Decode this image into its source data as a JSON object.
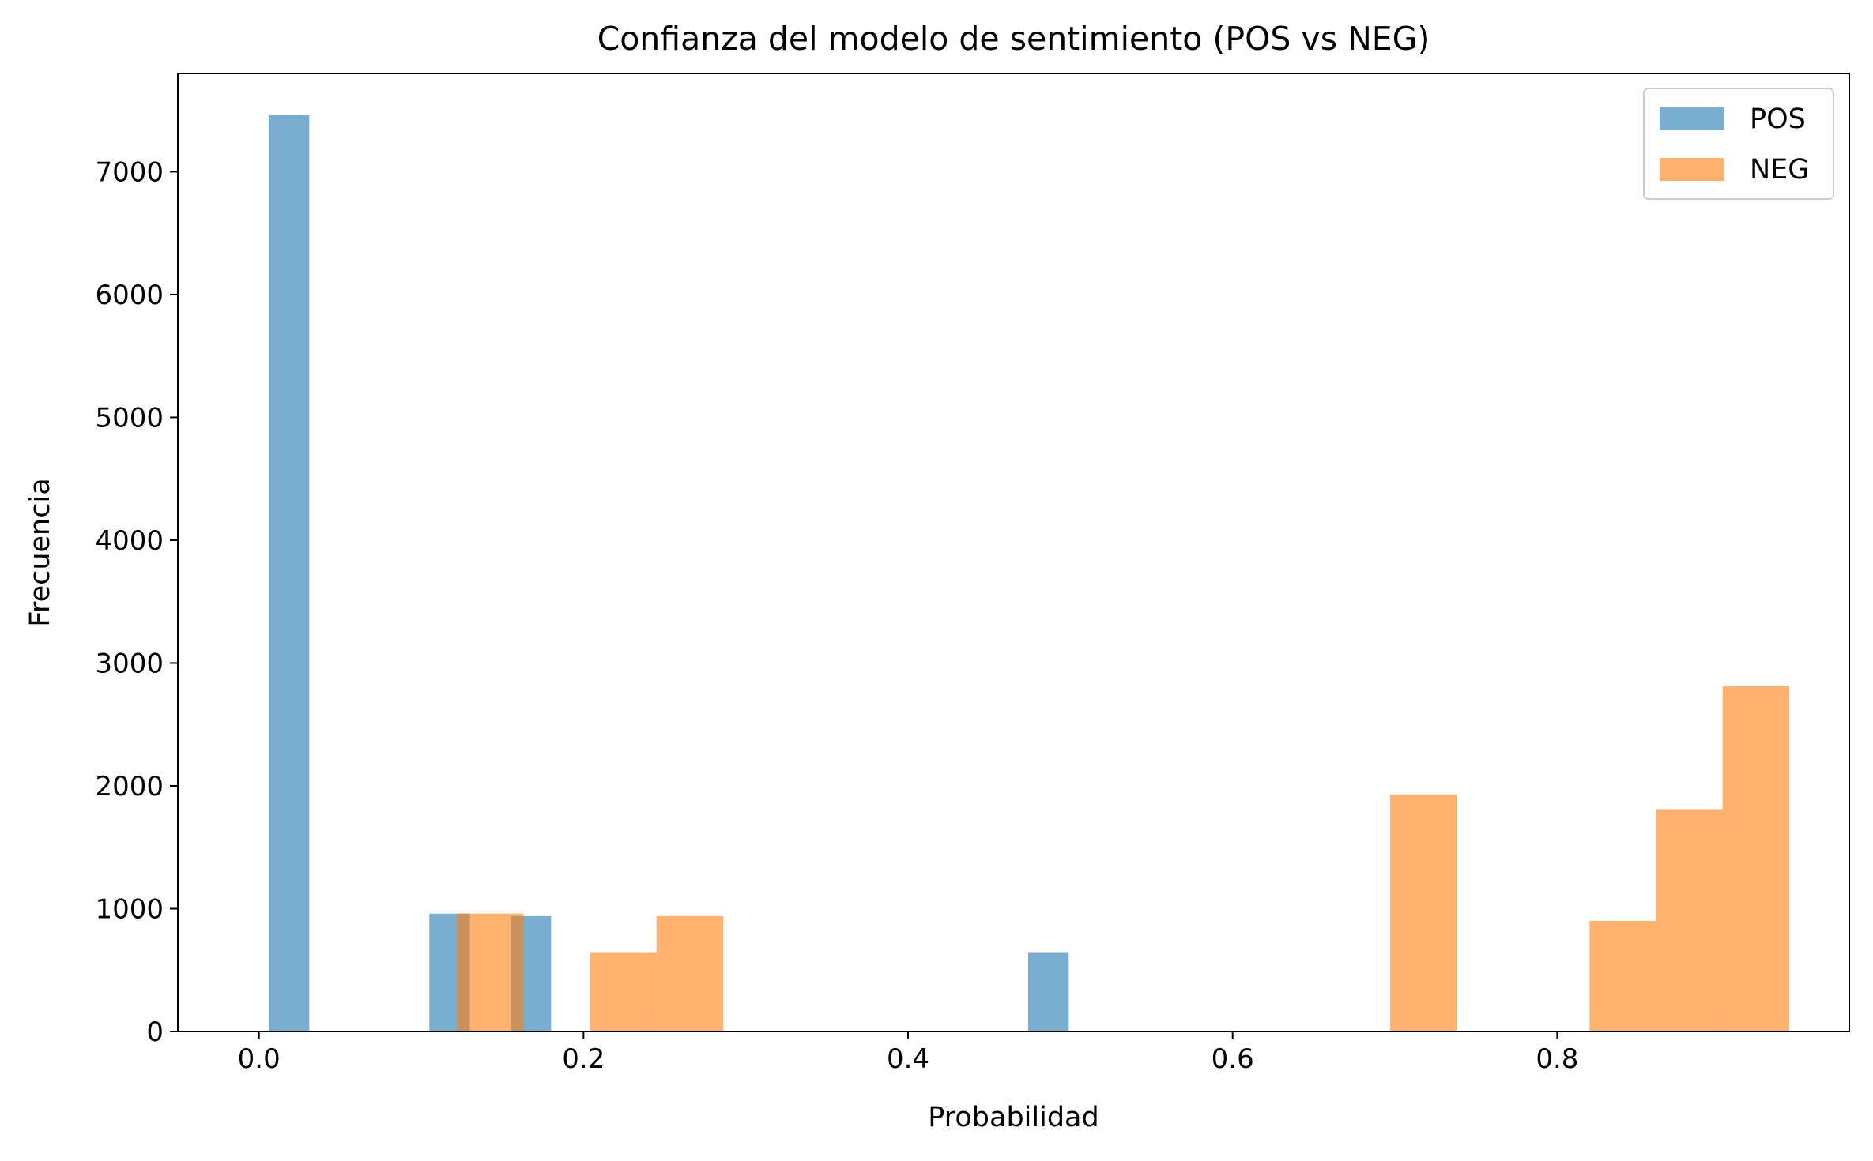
{
  "chart_data": {
    "type": "bar",
    "subtype": "overlaid histogram",
    "title": "Confianza del modelo de sentimiento (POS vs NEG)",
    "xlabel": "Probabilidad",
    "ylabel": "Frecuencia",
    "xlim": [
      -0.05,
      0.98
    ],
    "ylim": [
      0,
      7800
    ],
    "xticks": [
      0.0,
      0.2,
      0.4,
      0.6,
      0.8
    ],
    "xtick_labels": [
      "0.0",
      "0.2",
      "0.4",
      "0.6",
      "0.8"
    ],
    "yticks": [
      0,
      1000,
      2000,
      3000,
      4000,
      5000,
      6000,
      7000
    ],
    "ytick_labels": [
      "0",
      "1000",
      "2000",
      "3000",
      "4000",
      "5000",
      "6000",
      "7000"
    ],
    "grid": false,
    "legend_position": "top-right",
    "series": [
      {
        "name": "POS",
        "color": "#1f77b4",
        "alpha": 0.6,
        "bins": [
          {
            "x0": 0.006,
            "x1": 0.031,
            "count": 7460
          },
          {
            "x0": 0.105,
            "x1": 0.13,
            "count": 960
          },
          {
            "x0": 0.155,
            "x1": 0.18,
            "count": 940
          },
          {
            "x0": 0.474,
            "x1": 0.499,
            "count": 640
          }
        ]
      },
      {
        "name": "NEG",
        "color": "#ff7f0e",
        "alpha": 0.6,
        "bins": [
          {
            "x0": 0.122,
            "x1": 0.163,
            "count": 960
          },
          {
            "x0": 0.204,
            "x1": 0.245,
            "count": 640
          },
          {
            "x0": 0.245,
            "x1": 0.286,
            "count": 940
          },
          {
            "x0": 0.697,
            "x1": 0.738,
            "count": 1930
          },
          {
            "x0": 0.82,
            "x1": 0.861,
            "count": 900
          },
          {
            "x0": 0.861,
            "x1": 0.902,
            "count": 1810
          },
          {
            "x0": 0.902,
            "x1": 0.943,
            "count": 2810
          }
        ]
      }
    ]
  }
}
